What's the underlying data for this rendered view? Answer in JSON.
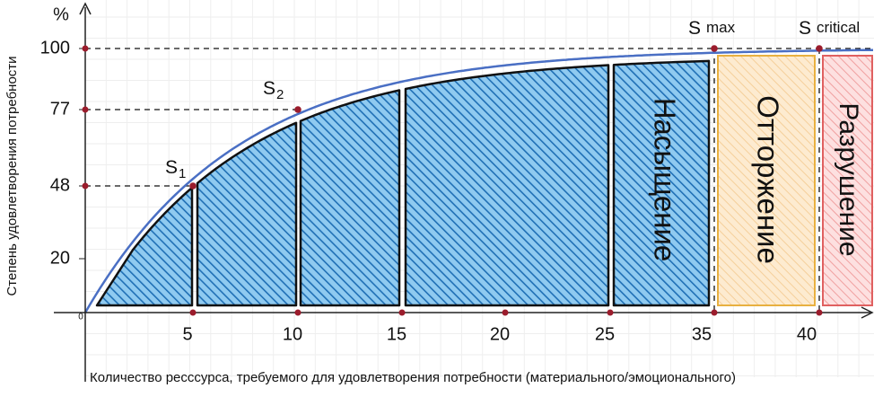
{
  "y_axis": {
    "unit": "%",
    "label": "Степень удовлетворения потребности",
    "ticks": [
      "100",
      "77",
      "48",
      "20"
    ]
  },
  "x_axis": {
    "origin": "0",
    "label": "Количество ресссурса, требуемого для удовлетворения потребности (материального/эмоционального)",
    "ticks": [
      "5",
      "10",
      "15",
      "20",
      "25",
      "35",
      "40"
    ]
  },
  "points": [
    {
      "name": "S",
      "sub": "1"
    },
    {
      "name": "S",
      "sub": "2"
    },
    {
      "name": "S",
      "sub": "max"
    },
    {
      "name": "S",
      "sub": "critical"
    }
  ],
  "zones": [
    "Насыщение",
    "Отторжение",
    "Разрушение"
  ]
}
